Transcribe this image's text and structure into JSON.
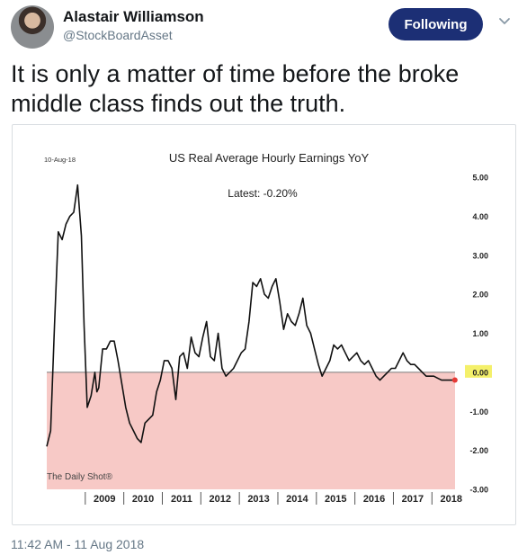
{
  "user": {
    "name": "Alastair Williamson",
    "handle": "@StockBoardAsset",
    "follow_label": "Following"
  },
  "tweet": {
    "text": "It is only a matter of time before the broke middle class finds out the truth.",
    "timestamp": "11:42 AM - 11 Aug 2018"
  },
  "icons": {
    "avatar": "profile-photo",
    "more": "chevron-down-icon"
  },
  "colors": {
    "follow_bg": "#1c2f75",
    "negative_fill": "#f7c9c6",
    "latest_point": "#e53935",
    "zero_label_bg": "#f4f06a"
  },
  "chart_data": {
    "type": "line",
    "title": "US Real Average Hourly Earnings YoY",
    "date_label": "10-Aug-18",
    "annotation": "Latest:  -0.20%",
    "watermark": "The Daily Shot®",
    "y_ticks": [
      "5.00",
      "4.00",
      "3.00",
      "2.00",
      "1.00",
      "0.00",
      "-1.00",
      "-2.00",
      "-3.00"
    ],
    "x_ticks": [
      "2009",
      "2010",
      "2011",
      "2012",
      "2013",
      "2014",
      "2015",
      "2016",
      "2017",
      "2018"
    ],
    "ylim": [
      -3,
      5
    ],
    "xlim": [
      2008.0,
      2018.6
    ],
    "grid": false,
    "negative_region_shaded": true,
    "series": [
      {
        "x": [
          2008.0,
          2008.1,
          2008.2,
          2008.3,
          2008.4,
          2008.5,
          2008.6,
          2008.7,
          2008.8,
          2008.9,
          2008.97,
          2009.05,
          2009.15,
          2009.25,
          2009.3,
          2009.35,
          2009.45,
          2009.55,
          2009.65,
          2009.75,
          2009.85,
          2009.95,
          2010.05,
          2010.15,
          2010.25,
          2010.35,
          2010.45,
          2010.55,
          2010.65,
          2010.75,
          2010.85,
          2010.95,
          2011.05,
          2011.15,
          2011.25,
          2011.35,
          2011.45,
          2011.55,
          2011.65,
          2011.75,
          2011.85,
          2011.95,
          2012.05,
          2012.15,
          2012.25,
          2012.35,
          2012.45,
          2012.55,
          2012.65,
          2012.75,
          2012.85,
          2012.95,
          2013.05,
          2013.15,
          2013.25,
          2013.35,
          2013.45,
          2013.55,
          2013.65,
          2013.75,
          2013.85,
          2013.95,
          2014.05,
          2014.15,
          2014.25,
          2014.35,
          2014.45,
          2014.55,
          2014.65,
          2014.75,
          2014.85,
          2014.95,
          2015.05,
          2015.15,
          2015.25,
          2015.35,
          2015.45,
          2015.55,
          2015.65,
          2015.75,
          2015.85,
          2015.95,
          2016.05,
          2016.15,
          2016.25,
          2016.35,
          2016.45,
          2016.55,
          2016.65,
          2016.75,
          2016.85,
          2016.95,
          2017.05,
          2017.15,
          2017.25,
          2017.35,
          2017.45,
          2017.55,
          2017.65,
          2017.75,
          2017.85,
          2017.95,
          2018.05,
          2018.15,
          2018.25,
          2018.35,
          2018.45,
          2018.55
        ],
        "values": [
          -1.9,
          -1.5,
          1.2,
          3.6,
          3.4,
          3.8,
          4.0,
          4.1,
          4.8,
          3.5,
          1.2,
          -0.9,
          -0.6,
          0.0,
          -0.5,
          -0.4,
          0.6,
          0.6,
          0.8,
          0.8,
          0.3,
          -0.3,
          -0.9,
          -1.3,
          -1.5,
          -1.7,
          -1.8,
          -1.3,
          -1.2,
          -1.1,
          -0.5,
          -0.2,
          0.3,
          0.3,
          0.1,
          -0.7,
          0.4,
          0.5,
          0.1,
          0.9,
          0.5,
          0.4,
          0.9,
          1.3,
          0.4,
          0.3,
          1.0,
          0.1,
          -0.1,
          0.0,
          0.1,
          0.3,
          0.5,
          0.6,
          1.3,
          2.3,
          2.2,
          2.4,
          2.0,
          1.9,
          2.2,
          2.4,
          1.8,
          1.1,
          1.5,
          1.3,
          1.2,
          1.5,
          1.9,
          1.2,
          1.0,
          0.6,
          0.2,
          -0.1,
          0.1,
          0.3,
          0.7,
          0.6,
          0.7,
          0.5,
          0.3,
          0.4,
          0.5,
          0.3,
          0.2,
          0.3,
          0.1,
          -0.1,
          -0.2,
          -0.1,
          0.0,
          0.1,
          0.1,
          0.3,
          0.5,
          0.3,
          0.2,
          0.2,
          0.1,
          0.0,
          -0.1,
          -0.1,
          -0.1,
          -0.15,
          -0.2,
          -0.2,
          -0.2,
          -0.2
        ]
      }
    ],
    "latest_value": -0.2
  }
}
